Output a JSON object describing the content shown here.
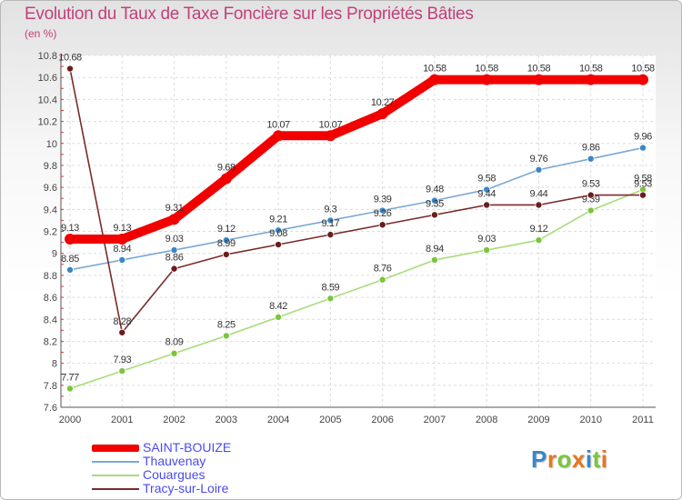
{
  "chart_data": {
    "type": "line",
    "title": "Evolution du Taux de Taxe Foncière sur les Propriétés Bâties",
    "unit_label": "(en %)",
    "xlabel": "",
    "ylabel": "(en %)",
    "categories": [
      "2000",
      "2001",
      "2002",
      "2003",
      "2004",
      "2005",
      "2006",
      "2007",
      "2008",
      "2009",
      "2010",
      "2011"
    ],
    "ylim": [
      7.6,
      10.8
    ],
    "yticks": [
      "7.6",
      "7.8",
      "8",
      "8.2",
      "8.4",
      "8.6",
      "8.8",
      "9",
      "9.2",
      "9.4",
      "9.6",
      "9.8",
      "10",
      "10.2",
      "10.4",
      "10.6",
      "10.8"
    ],
    "grid": true,
    "series": [
      {
        "name": "Thauvenay",
        "color": "#7aa8d6",
        "marker": "#3a86c8",
        "values": [
          8.85,
          8.94,
          9.03,
          9.12,
          9.21,
          9.3,
          9.39,
          9.48,
          9.58,
          9.76,
          9.86,
          9.96
        ],
        "labels": [
          "8.85",
          "8.94",
          "9.03",
          "9.12",
          "9.21",
          "9.3",
          "9.39",
          "9.48",
          "9.58",
          "9.76",
          "9.86",
          "9.96"
        ]
      },
      {
        "name": "Couargues",
        "color": "#a8dc7a",
        "marker": "#7cc43e",
        "values": [
          7.77,
          7.93,
          8.09,
          8.25,
          8.42,
          8.59,
          8.76,
          8.94,
          9.03,
          9.12,
          9.39,
          9.58
        ],
        "labels": [
          "7.77",
          "7.93",
          "8.09",
          "8.25",
          "8.42",
          "8.59",
          "8.76",
          "8.94",
          "9.03",
          "9.12",
          "9.39",
          "9.58"
        ]
      },
      {
        "name": "Tracy-sur-Loire",
        "color": "#7a2a2a",
        "marker": "#6b1d1d",
        "values": [
          10.68,
          8.28,
          8.86,
          8.99,
          9.08,
          9.17,
          9.26,
          9.35,
          9.44,
          9.44,
          9.53,
          9.53
        ],
        "labels": [
          "10.68",
          "8.28",
          "8.86",
          "8.99",
          "9.08",
          "9.17",
          "9.26",
          "9.35",
          "9.44",
          "9.44",
          "9.53",
          "9.53"
        ]
      },
      {
        "name": "SAINT-BOUIZE",
        "color": "#f20000",
        "marker": "#f20000",
        "values": [
          9.13,
          9.13,
          9.31,
          9.68,
          10.07,
          10.07,
          10.27,
          10.58,
          10.58,
          10.58,
          10.58,
          10.58
        ],
        "labels": [
          "9.13",
          "9.13",
          "9.31",
          "9.68",
          "10.07",
          "10.07",
          "10.27",
          "10.58",
          "10.58",
          "10.58",
          "10.58",
          "10.58"
        ]
      }
    ]
  },
  "legend": [
    {
      "label": "SAINT-BOUIZE",
      "color": "#f20000"
    },
    {
      "label": "Thauvenay",
      "color": "#7aa8d6"
    },
    {
      "label": "Couargues",
      "color": "#a8dc7a"
    },
    {
      "label": "Tracy-sur-Loire",
      "color": "#7a2a2a"
    }
  ],
  "logo": {
    "letters": [
      "P",
      "r",
      "o",
      "x",
      "i",
      "t",
      "i"
    ],
    "colors": [
      "#3a86c8",
      "#e8761e",
      "#7cc43e",
      "#e8761e",
      "#3a86c8",
      "#7cc43e",
      "#e8761e"
    ]
  }
}
